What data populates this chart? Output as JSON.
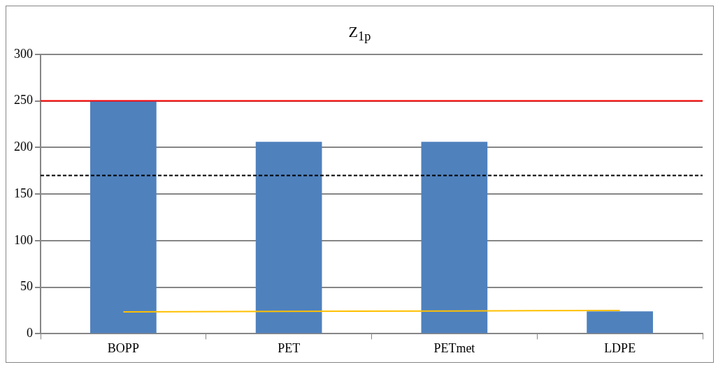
{
  "chart_data": {
    "type": "bar",
    "title": "Z$_{1p}$",
    "categories": [
      "BOPP",
      "PET",
      "PETmet",
      "LDPE"
    ],
    "series": [
      {
        "color": "#4f81bd",
        "values": [
          250,
          206,
          206,
          24
        ]
      },
      {
        "type": "line",
        "color": "#ffc000",
        "values": [
          23.5,
          24,
          24.5,
          25
        ]
      }
    ],
    "ylim": [
      0,
      300
    ],
    "yticks": [
      0,
      50,
      100,
      150,
      200,
      250,
      300
    ],
    "grid": "y",
    "legend": false,
    "marker": "none",
    "ref_lines": [
      {
        "axis": "y",
        "value": 250,
        "color": "#ff0000",
        "line_style": "solid"
      },
      {
        "axis": "y",
        "value": 170,
        "color": "#000000",
        "line_style": "dashed"
      }
    ]
  }
}
